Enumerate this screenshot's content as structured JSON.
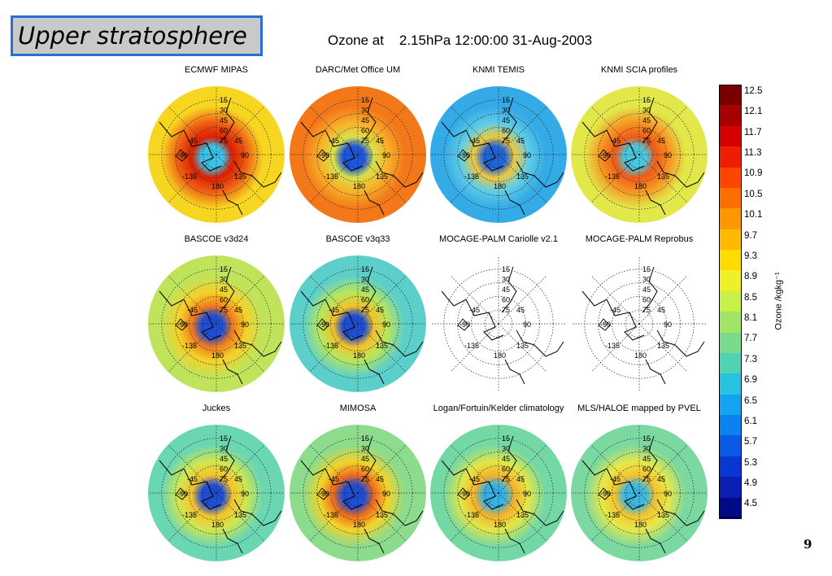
{
  "slide_title": "Upper stratosphere",
  "page_number": "9",
  "chart_data": {
    "type": "heatmap",
    "title": "Ozone at    2.15hPa 12:00:00 31-Aug-2003",
    "map_lat_labels": [
      "15",
      "30",
      "45",
      "60",
      "75"
    ],
    "map_lon_labels": [
      "-45",
      "45",
      "-90",
      "90",
      "-135",
      "135",
      "180"
    ],
    "colorbar": {
      "label": "Ozone /kgkg⁻¹",
      "ticks": [
        "12.5",
        "12.1",
        "11.7",
        "11.3",
        "10.9",
        "10.5",
        "10.1",
        "9.7",
        "9.3",
        "8.9",
        "8.5",
        "8.1",
        "7.7",
        "7.3",
        "6.9",
        "6.5",
        "6.1",
        "5.7",
        "5.3",
        "4.9",
        "4.5"
      ],
      "colors": [
        "#7a0000",
        "#a80000",
        "#d40000",
        "#f01e00",
        "#fa4600",
        "#fc6e00",
        "#fd9600",
        "#feba00",
        "#ffdc00",
        "#f0f028",
        "#c8f046",
        "#a0e664",
        "#78dc8c",
        "#50d2b4",
        "#28c3e1",
        "#14a5f0",
        "#0a82f0",
        "#0a5ae6",
        "#0a37d2",
        "#0a1eb4",
        "#000a87"
      ]
    },
    "panels": [
      {
        "title": "ECMWF MIPAS",
        "outer": "#f7d622",
        "ring": "#ee5a14",
        "ring2": "#dc2000",
        "center": "#39c3ea",
        "has_data": true
      },
      {
        "title": "DARC/Met Office UM",
        "outer": "#f2781a",
        "ring": "#f7b32a",
        "ring2": "#d8e04a",
        "center": "#1e55dc",
        "has_data": true
      },
      {
        "title": "KNMI TEMIS",
        "outer": "#34aae6",
        "ring": "#62cde6",
        "ring2": "#f0c83c",
        "center": "#2064d8",
        "has_data": true
      },
      {
        "title": "KNMI SCIA profiles",
        "outer": "#e2e84a",
        "ring": "#f79222",
        "ring2": "#ef5a18",
        "center": "#48c8de",
        "has_data": true
      },
      {
        "title": "BASCOE v3d24",
        "outer": "#bfe35a",
        "ring": "#f6d028",
        "ring2": "#f07a1c",
        "center": "#1e4ed6",
        "has_data": true
      },
      {
        "title": "BASCOE v3q33",
        "outer": "#5ccfca",
        "ring": "#b9e65a",
        "ring2": "#f5c028",
        "center": "#1e4ed6",
        "has_data": true
      },
      {
        "title": "MOCAGE-PALM Cariolle v2.1",
        "has_data": false
      },
      {
        "title": "MOCAGE-PALM Reprobus",
        "has_data": false
      },
      {
        "title": "Juckes",
        "outer": "#6ad6b2",
        "ring": "#d2e64e",
        "ring2": "#f4c22c",
        "center": "#1e4ed6",
        "has_data": true
      },
      {
        "title": "MIMOSA",
        "outer": "#8ddb8c",
        "ring": "#f2d42a",
        "ring2": "#ee6a1c",
        "center": "#1e4ed6",
        "has_data": true
      },
      {
        "title": "Logan/Fortuin/Kelder climatology",
        "outer": "#74d8a4",
        "ring": "#e3e646",
        "ring2": "#f6b02a",
        "center": "#34b2e6",
        "has_data": true
      },
      {
        "title": "MLS/HALOE mapped by PVEL",
        "outer": "#7ad8a0",
        "ring": "#e6e84a",
        "ring2": "#f3c22e",
        "center": "#3cb8e2",
        "has_data": true
      }
    ]
  }
}
